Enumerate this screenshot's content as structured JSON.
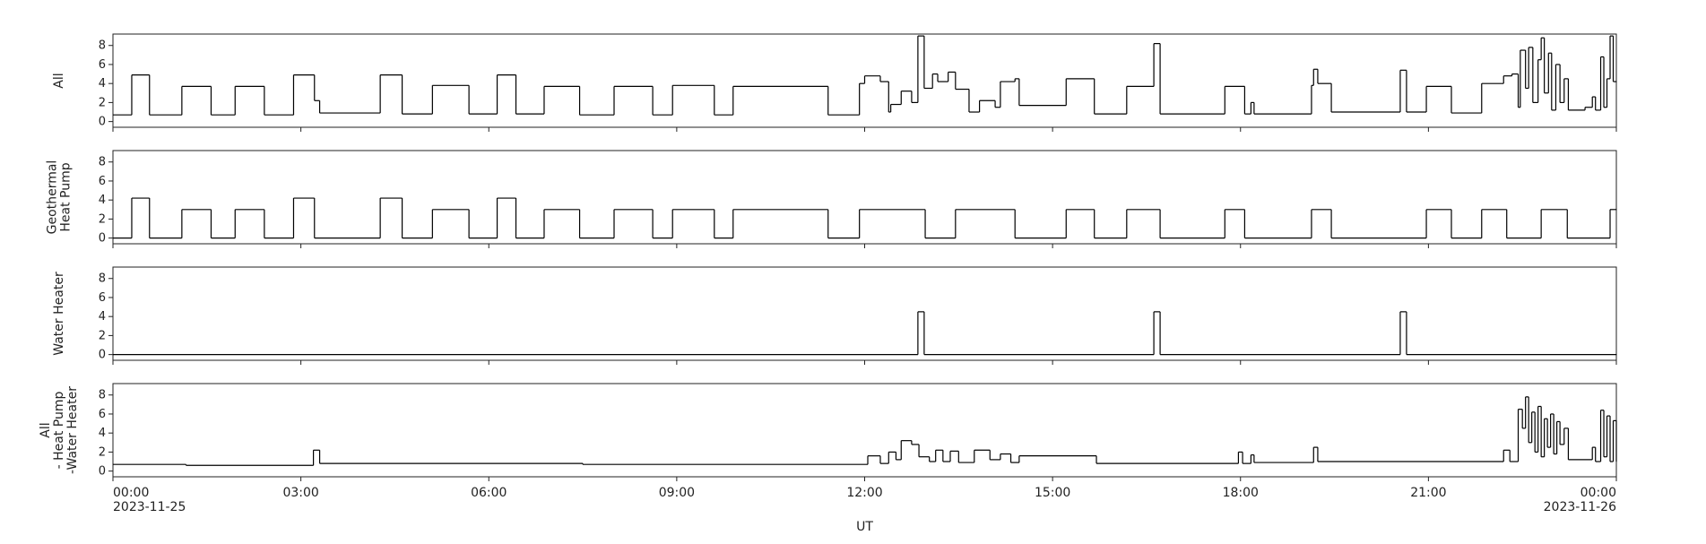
{
  "chart_data": [
    {
      "type": "line",
      "ylabel": "All",
      "color": "#000000",
      "ylim": [
        -0.6,
        9.2
      ],
      "yticks": [
        0,
        2,
        4,
        6,
        8
      ],
      "x": [
        "2023-11-25T00:00",
        "2023-11-25T00:18",
        "2023-11-25T00:35",
        "2023-11-25T01:06",
        "2023-11-25T01:34",
        "2023-11-25T01:57",
        "2023-11-25T02:25",
        "2023-11-25T02:53",
        "2023-11-25T03:13",
        "2023-11-25T03:18",
        "2023-11-25T04:16",
        "2023-11-25T04:37",
        "2023-11-25T05:06",
        "2023-11-25T05:41",
        "2023-11-25T06:08",
        "2023-11-25T06:26",
        "2023-11-25T06:53",
        "2023-11-25T07:27",
        "2023-11-25T08:00",
        "2023-11-25T08:37",
        "2023-11-25T08:56",
        "2023-11-25T09:36",
        "2023-11-25T09:54",
        "2023-11-25T11:25",
        "2023-11-25T11:55",
        "2023-11-25T12:00",
        "2023-11-25T12:15",
        "2023-11-25T12:23",
        "2023-11-25T12:25",
        "2023-11-25T12:35",
        "2023-11-25T12:45",
        "2023-11-25T12:51",
        "2023-11-25T12:57",
        "2023-11-25T13:05",
        "2023-11-25T13:10",
        "2023-11-25T13:20",
        "2023-11-25T13:27",
        "2023-11-25T13:40",
        "2023-11-25T13:50",
        "2023-11-25T14:05",
        "2023-11-25T14:10",
        "2023-11-25T14:24",
        "2023-11-25T14:28",
        "2023-11-25T15:13",
        "2023-11-25T15:40",
        "2023-11-25T16:11",
        "2023-11-25T16:37",
        "2023-11-25T16:43",
        "2023-11-25T17:45",
        "2023-11-25T18:04",
        "2023-11-25T18:10",
        "2023-11-25T18:13",
        "2023-11-25T19:08",
        "2023-11-25T19:10",
        "2023-11-25T19:14",
        "2023-11-25T19:27",
        "2023-11-25T20:33",
        "2023-11-25T20:39",
        "2023-11-25T20:58",
        "2023-11-25T21:22",
        "2023-11-25T21:51",
        "2023-11-25T22:12",
        "2023-11-25T22:20",
        "2023-11-25T22:26",
        "2023-11-25T22:28",
        "2023-11-25T22:33",
        "2023-11-25T22:36",
        "2023-11-25T22:40",
        "2023-11-25T22:45",
        "2023-11-25T22:48",
        "2023-11-25T22:51",
        "2023-11-25T22:55",
        "2023-11-25T22:58",
        "2023-11-25T23:02",
        "2023-11-25T23:06",
        "2023-11-25T23:10",
        "2023-11-25T23:14",
        "2023-11-25T23:30",
        "2023-11-25T23:37",
        "2023-11-25T23:40",
        "2023-11-25T23:45",
        "2023-11-25T23:48",
        "2023-11-25T23:51",
        "2023-11-25T23:54",
        "2023-11-25T23:57",
        "2023-11-26T00:00"
      ],
      "values": [
        0.7,
        4.9,
        0.7,
        3.7,
        0.7,
        3.7,
        0.7,
        4.9,
        2.2,
        0.9,
        4.9,
        0.8,
        3.8,
        0.8,
        4.9,
        0.8,
        3.7,
        0.7,
        3.7,
        0.7,
        3.8,
        0.7,
        3.7,
        0.7,
        4.0,
        4.8,
        4.2,
        1.0,
        1.8,
        3.2,
        2.0,
        9.0,
        3.5,
        5.0,
        4.2,
        5.2,
        3.4,
        1.0,
        2.2,
        1.5,
        4.2,
        4.5,
        1.7,
        4.5,
        0.8,
        3.7,
        8.2,
        0.8,
        3.7,
        0.8,
        2.0,
        0.8,
        3.8,
        5.5,
        4.0,
        1.0,
        5.4,
        1.0,
        3.7,
        0.9,
        4.0,
        4.8,
        5.0,
        1.5,
        7.5,
        3.5,
        7.8,
        2.0,
        6.5,
        8.8,
        3.0,
        7.2,
        1.2,
        6.0,
        2.0,
        4.5,
        1.2,
        1.5,
        2.6,
        1.2,
        6.8,
        1.5,
        4.5,
        9.0,
        4.2,
        4.2
      ]
    },
    {
      "type": "line",
      "ylabel": "Geothermal\nHeat Pump",
      "color": "#000000",
      "ylim": [
        -0.6,
        9.2
      ],
      "yticks": [
        0,
        2,
        4,
        6,
        8
      ],
      "x": [
        "2023-11-25T00:00",
        "2023-11-25T00:18",
        "2023-11-25T00:35",
        "2023-11-25T01:06",
        "2023-11-25T01:34",
        "2023-11-25T01:57",
        "2023-11-25T02:25",
        "2023-11-25T02:53",
        "2023-11-25T03:13",
        "2023-11-25T04:16",
        "2023-11-25T04:37",
        "2023-11-25T05:06",
        "2023-11-25T05:41",
        "2023-11-25T06:08",
        "2023-11-25T06:26",
        "2023-11-25T06:53",
        "2023-11-25T07:27",
        "2023-11-25T08:00",
        "2023-11-25T08:37",
        "2023-11-25T08:56",
        "2023-11-25T09:36",
        "2023-11-25T09:54",
        "2023-11-25T11:25",
        "2023-11-25T11:55",
        "2023-11-25T12:58",
        "2023-11-25T13:27",
        "2023-11-25T14:24",
        "2023-11-25T15:13",
        "2023-11-25T15:40",
        "2023-11-25T16:11",
        "2023-11-25T16:43",
        "2023-11-25T17:45",
        "2023-11-25T18:04",
        "2023-11-25T19:08",
        "2023-11-25T19:27",
        "2023-11-25T20:58",
        "2023-11-25T21:22",
        "2023-11-25T21:51",
        "2023-11-25T22:15",
        "2023-11-25T22:48",
        "2023-11-25T23:13",
        "2023-11-25T23:54",
        "2023-11-26T00:00"
      ],
      "values": [
        0,
        4.2,
        0,
        3.0,
        0,
        3.0,
        0,
        4.2,
        0,
        4.2,
        0,
        3.0,
        0,
        4.2,
        0,
        3.0,
        0,
        3.0,
        0,
        3.0,
        0,
        3.0,
        0,
        3.0,
        0,
        3.0,
        0,
        3.0,
        0,
        3.0,
        0,
        3.0,
        0,
        3.0,
        0,
        3.0,
        0,
        3.0,
        0,
        3.0,
        0,
        3.0,
        3.0
      ]
    },
    {
      "type": "line",
      "ylabel": "Water Heater",
      "color": "#000000",
      "ylim": [
        -0.6,
        9.2
      ],
      "yticks": [
        0,
        2,
        4,
        6,
        8
      ],
      "x": [
        "2023-11-25T00:00",
        "2023-11-25T12:51",
        "2023-11-25T12:57",
        "2023-11-25T16:37",
        "2023-11-25T16:43",
        "2023-11-25T20:33",
        "2023-11-25T20:39",
        "2023-11-26T00:00"
      ],
      "values": [
        0,
        4.5,
        0,
        4.5,
        0,
        4.5,
        0,
        0
      ]
    },
    {
      "type": "line",
      "ylabel": "All\n- Heat Pump\n-Water Heater",
      "color": "#000000",
      "ylim": [
        -0.6,
        9.2
      ],
      "yticks": [
        0,
        2,
        4,
        6,
        8
      ],
      "xlabel": "UT",
      "xlim": [
        "2023-11-25T00:00",
        "2023-11-26T00:00"
      ],
      "xticks": [
        {
          "value": "2023-11-25T00:00",
          "label": "00:00\n2023-11-25"
        },
        {
          "value": "2023-11-25T03:00",
          "label": "03:00"
        },
        {
          "value": "2023-11-25T06:00",
          "label": "06:00"
        },
        {
          "value": "2023-11-25T09:00",
          "label": "09:00"
        },
        {
          "value": "2023-11-25T12:00",
          "label": "12:00"
        },
        {
          "value": "2023-11-25T15:00",
          "label": "15:00"
        },
        {
          "value": "2023-11-25T18:00",
          "label": "18:00"
        },
        {
          "value": "2023-11-25T21:00",
          "label": "21:00"
        },
        {
          "value": "2023-11-26T00:00",
          "label": "00:00\n2023-11-26"
        }
      ],
      "x": [
        "2023-11-25T00:00",
        "2023-11-25T01:10",
        "2023-11-25T03:12",
        "2023-11-25T03:18",
        "2023-11-25T07:30",
        "2023-11-25T12:03",
        "2023-11-25T12:15",
        "2023-11-25T12:23",
        "2023-11-25T12:30",
        "2023-11-25T12:35",
        "2023-11-25T12:45",
        "2023-11-25T12:52",
        "2023-11-25T13:02",
        "2023-11-25T13:08",
        "2023-11-25T13:15",
        "2023-11-25T13:22",
        "2023-11-25T13:30",
        "2023-11-25T13:45",
        "2023-11-25T14:00",
        "2023-11-25T14:10",
        "2023-11-25T14:20",
        "2023-11-25T14:28",
        "2023-11-25T15:42",
        "2023-11-25T17:58",
        "2023-11-25T18:02",
        "2023-11-25T18:10",
        "2023-11-25T18:13",
        "2023-11-25T19:10",
        "2023-11-25T19:14",
        "2023-11-25T22:12",
        "2023-11-25T22:18",
        "2023-11-25T22:26",
        "2023-11-25T22:30",
        "2023-11-25T22:33",
        "2023-11-25T22:36",
        "2023-11-25T22:39",
        "2023-11-25T22:42",
        "2023-11-25T22:45",
        "2023-11-25T22:48",
        "2023-11-25T22:51",
        "2023-11-25T22:54",
        "2023-11-25T22:57",
        "2023-11-25T23:00",
        "2023-11-25T23:03",
        "2023-11-25T23:06",
        "2023-11-25T23:10",
        "2023-11-25T23:14",
        "2023-11-25T23:37",
        "2023-11-25T23:40",
        "2023-11-25T23:45",
        "2023-11-25T23:48",
        "2023-11-25T23:51",
        "2023-11-25T23:54",
        "2023-11-25T23:57",
        "2023-11-26T00:00"
      ],
      "values": [
        0.7,
        0.6,
        2.2,
        0.8,
        0.7,
        1.6,
        0.8,
        2.0,
        1.2,
        3.2,
        2.8,
        1.5,
        1.0,
        2.2,
        1.0,
        2.1,
        0.9,
        2.2,
        1.2,
        1.8,
        0.9,
        1.6,
        0.8,
        2.0,
        0.8,
        1.7,
        0.9,
        2.5,
        1.0,
        2.2,
        1.0,
        6.5,
        4.5,
        7.8,
        3.0,
        6.2,
        2.0,
        6.8,
        1.5,
        5.5,
        2.5,
        6.0,
        1.8,
        5.2,
        2.8,
        4.5,
        1.2,
        2.5,
        1.0,
        6.4,
        1.5,
        5.8,
        1.0,
        5.3,
        1.0
      ]
    }
  ]
}
